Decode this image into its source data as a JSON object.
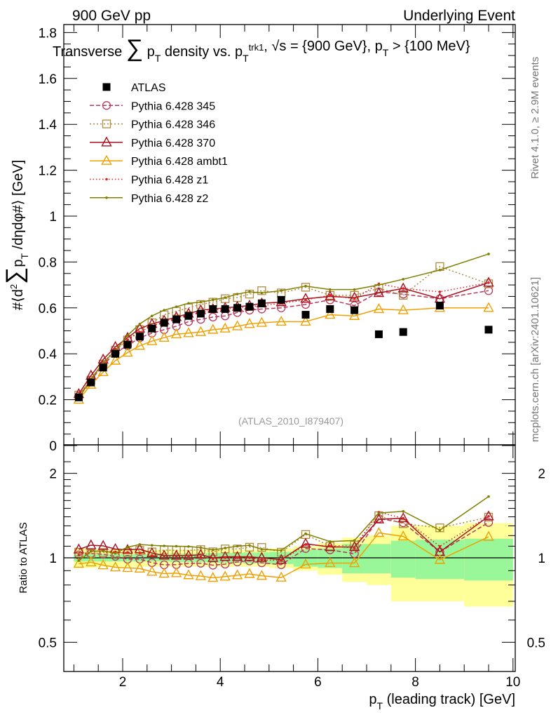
{
  "header": {
    "left": "900 GeV pp",
    "right": "Underlying Event",
    "side_top": "Rivet 4.1.0, ≥ 2.9M events",
    "side_bottom": "mcplots.cern.ch [arXiv:2401.10621]",
    "analysis": "(ATLAS_2010_I879407)"
  },
  "chart_data": {
    "type": "line",
    "title": "Transverse ∑ pT density vs. pTtrk1, √s = {900 GeV}, pT > {100 MeV}",
    "title_parts": [
      "Transverse ",
      "∑",
      " p",
      "T",
      " density vs. p",
      "T",
      "trk1",
      ", √s = {900 GeV}, p",
      "T",
      " > {100 MeV}"
    ],
    "ylabel_parts": [
      "#⟨d",
      "2",
      "∑",
      "p",
      "T",
      " /dηdφ#⟩ [GeV]"
    ],
    "ylabel": "#⟨d2 ∑ pT /dηdφ#⟩ [GeV]",
    "xlabel_parts": [
      "p",
      "T",
      " (leading track) [GeV]"
    ],
    "xlabel": "pT (leading track) [GeV]",
    "ratio_ylabel": "Ratio to ATLAS",
    "xlim": [
      0.85,
      10.1
    ],
    "ylim": [
      0,
      1.83
    ],
    "ratio_ylim": [
      0.42,
      2.4
    ],
    "x_ticks": [
      2,
      4,
      6,
      8,
      10
    ],
    "y_ticks": [
      0,
      0.2,
      0.4,
      0.6,
      0.8,
      1,
      1.2,
      1.4,
      1.6,
      1.8
    ],
    "y_tick_labels": [
      "0",
      "0.2",
      "0.4",
      "0.6",
      "0.8",
      "1",
      "1.2",
      "1.4",
      "1.6",
      "1.8"
    ],
    "ratio_ticks": [
      0.5,
      1,
      2
    ],
    "ratio_tick_labels": [
      "0.5",
      "1",
      "2"
    ],
    "legend_position": "top-left",
    "x": [
      1.1,
      1.35,
      1.6,
      1.85,
      2.1,
      2.35,
      2.6,
      2.85,
      3.1,
      3.35,
      3.6,
      3.85,
      4.1,
      4.35,
      4.6,
      4.85,
      5.25,
      5.75,
      6.25,
      6.75,
      7.25,
      7.75,
      8.5,
      9.5
    ],
    "bin_edges": [
      1.0,
      1.225,
      1.475,
      1.725,
      1.975,
      2.225,
      2.475,
      2.725,
      2.975,
      3.225,
      3.475,
      3.725,
      3.975,
      4.225,
      4.475,
      4.725,
      5.0,
      5.5,
      6.0,
      6.5,
      7.0,
      7.5,
      8.0,
      9.0,
      10.0
    ],
    "data": {
      "name": "ATLAS",
      "color": "#000000",
      "values": [
        0.21,
        0.275,
        0.34,
        0.4,
        0.44,
        0.475,
        0.51,
        0.535,
        0.55,
        0.565,
        0.575,
        0.595,
        0.595,
        0.6,
        0.605,
        0.62,
        0.635,
        0.57,
        0.595,
        0.59,
        0.485,
        0.495,
        0.61,
        0.505
      ],
      "stat_rel": [
        0.03,
        0.03,
        0.03,
        0.03,
        0.03,
        0.03,
        0.03,
        0.03,
        0.035,
        0.035,
        0.035,
        0.04,
        0.04,
        0.04,
        0.045,
        0.045,
        0.05,
        0.07,
        0.08,
        0.12,
        0.12,
        0.15,
        0.16,
        0.17
      ],
      "total_rel": [
        0.08,
        0.08,
        0.07,
        0.07,
        0.07,
        0.07,
        0.07,
        0.07,
        0.07,
        0.07,
        0.07,
        0.07,
        0.07,
        0.07,
        0.07,
        0.07,
        0.08,
        0.1,
        0.13,
        0.18,
        0.2,
        0.3,
        0.3,
        0.33
      ]
    },
    "series": [
      {
        "name": "Pythia 6.428 345",
        "color": "#b8385a",
        "marker": "circle",
        "dash": "6,3",
        "values": [
          0.215,
          0.285,
          0.35,
          0.405,
          0.435,
          0.47,
          0.49,
          0.505,
          0.52,
          0.54,
          0.55,
          0.56,
          0.565,
          0.58,
          0.59,
          0.595,
          0.6,
          0.615,
          0.635,
          0.61,
          0.67,
          0.66,
          0.64,
          0.675
        ]
      },
      {
        "name": "Pythia 6.428 346",
        "color": "#b08a3e",
        "marker": "square",
        "dash": "2,3",
        "values": [
          0.22,
          0.285,
          0.355,
          0.415,
          0.46,
          0.505,
          0.535,
          0.57,
          0.585,
          0.6,
          0.615,
          0.625,
          0.64,
          0.645,
          0.66,
          0.675,
          0.665,
          0.69,
          0.655,
          0.655,
          0.685,
          0.655,
          0.78,
          0.705
        ]
      },
      {
        "name": "Pythia 6.428 370",
        "color": "#a8101e",
        "marker": "triangle",
        "dash": "",
        "values": [
          0.225,
          0.305,
          0.375,
          0.43,
          0.47,
          0.51,
          0.53,
          0.545,
          0.56,
          0.575,
          0.59,
          0.595,
          0.6,
          0.605,
          0.61,
          0.62,
          0.625,
          0.64,
          0.65,
          0.645,
          0.665,
          0.685,
          0.64,
          0.71
        ]
      },
      {
        "name": "Pythia 6.428 ambt1",
        "color": "#f0a000",
        "marker": "triangle",
        "dash": "",
        "values": [
          0.2,
          0.265,
          0.32,
          0.37,
          0.405,
          0.435,
          0.455,
          0.47,
          0.485,
          0.49,
          0.495,
          0.505,
          0.51,
          0.52,
          0.53,
          0.535,
          0.54,
          0.54,
          0.57,
          0.565,
          0.595,
          0.59,
          0.6,
          0.6
        ]
      },
      {
        "name": "Pythia 6.428 z1",
        "color": "#e02020",
        "marker": "dot",
        "dash": "1.5,3",
        "values": [
          0.215,
          0.29,
          0.36,
          0.42,
          0.46,
          0.495,
          0.52,
          0.54,
          0.555,
          0.57,
          0.58,
          0.59,
          0.595,
          0.6,
          0.605,
          0.61,
          0.62,
          0.635,
          0.655,
          0.64,
          0.705,
          0.685,
          0.67,
          0.71
        ]
      },
      {
        "name": "Pythia 6.428 z2",
        "color": "#808000",
        "marker": "dot",
        "dash": "",
        "values": [
          0.205,
          0.29,
          0.36,
          0.415,
          0.48,
          0.53,
          0.565,
          0.59,
          0.605,
          0.62,
          0.625,
          0.635,
          0.645,
          0.66,
          0.67,
          0.665,
          0.675,
          0.695,
          0.68,
          0.68,
          0.7,
          0.725,
          0.765,
          0.835
        ]
      }
    ],
    "band_colors": {
      "stat": "#99f799",
      "total": "#ffff99"
    }
  }
}
